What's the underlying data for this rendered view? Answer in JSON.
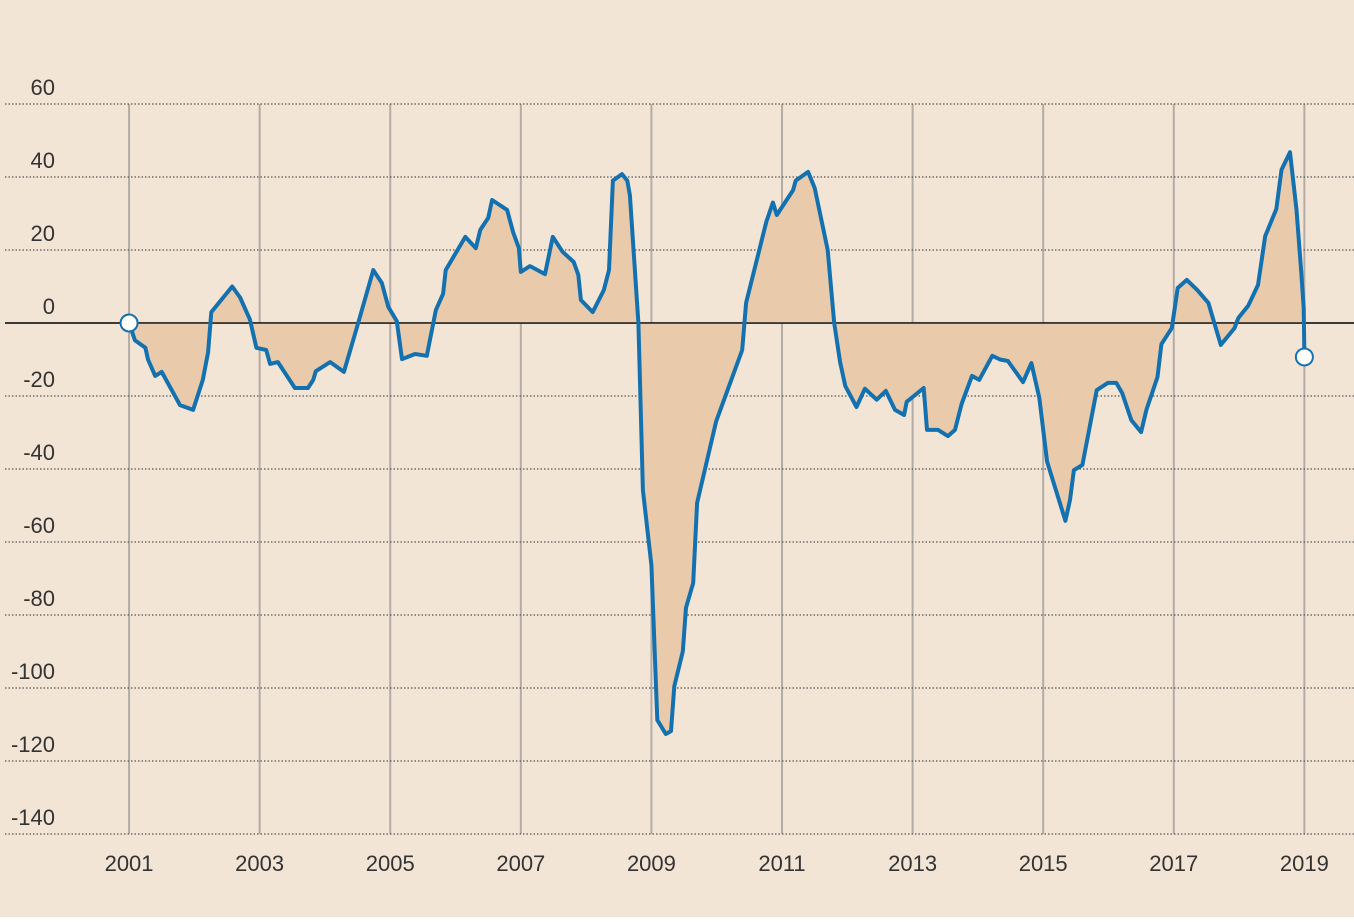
{
  "chart_data": {
    "type": "area-line",
    "x": [
      2001.0,
      2001.09,
      2001.25,
      2001.29,
      2001.4,
      2001.5,
      2001.78,
      2001.98,
      2002.13,
      2002.21,
      2002.26,
      2002.58,
      2002.7,
      2002.85,
      2002.95,
      2003.1,
      2003.16,
      2003.28,
      2003.54,
      2003.74,
      2003.82,
      2003.86,
      2004.08,
      2004.29,
      2004.51,
      2004.74,
      2004.87,
      2004.97,
      2005.1,
      2005.18,
      2005.38,
      2005.56,
      2005.7,
      2005.81,
      2005.85,
      2006.15,
      2006.31,
      2006.38,
      2006.5,
      2006.56,
      2006.79,
      2006.88,
      2006.97,
      2007.0,
      2007.14,
      2007.37,
      2007.49,
      2007.64,
      2007.81,
      2007.88,
      2007.92,
      2008.1,
      2008.27,
      2008.35,
      2008.41,
      2008.55,
      2008.63,
      2008.67,
      2008.8,
      2008.87,
      2009.0,
      2009.09,
      2009.22,
      2009.3,
      2009.35,
      2009.48,
      2009.53,
      2009.64,
      2009.7,
      2009.99,
      2010.39,
      2010.45,
      2010.76,
      2010.86,
      2010.92,
      2011.17,
      2011.21,
      2011.4,
      2011.5,
      2011.7,
      2011.8,
      2011.89,
      2011.97,
      2012.14,
      2012.27,
      2012.45,
      2012.59,
      2012.73,
      2012.87,
      2012.91,
      2013.17,
      2013.22,
      2013.39,
      2013.54,
      2013.65,
      2013.75,
      2013.91,
      2014.02,
      2014.22,
      2014.34,
      2014.46,
      2014.69,
      2014.82,
      2014.94,
      2015.06,
      2015.34,
      2015.41,
      2015.47,
      2015.6,
      2015.82,
      2015.99,
      2016.12,
      2016.21,
      2016.35,
      2016.5,
      2016.58,
      2016.75,
      2016.81,
      2016.97,
      2017.06,
      2017.2,
      2017.36,
      2017.53,
      2017.72,
      2017.93,
      2017.99,
      2018.14,
      2018.29,
      2018.4,
      2018.57,
      2018.65,
      2018.78,
      2018.88,
      2018.95,
      2018.99,
      2019.0
    ],
    "series": [
      {
        "color": "#1471b0",
        "fill": "#e9caab",
        "values": [
          0,
          -4.7,
          -6.8,
          -10,
          -14.5,
          -13.4,
          -22.5,
          -23.8,
          -15.6,
          -8,
          3,
          10,
          7,
          1,
          -6.8,
          -7.4,
          -11.2,
          -10.7,
          -17.8,
          -17.8,
          -15.6,
          -13.2,
          -10.7,
          -13.4,
          0,
          14.5,
          11,
          4.4,
          0.5,
          -9.9,
          -8.5,
          -9,
          3.6,
          8,
          14.5,
          23.6,
          20.5,
          25.5,
          28.8,
          33.7,
          31,
          25,
          20.5,
          14,
          15.6,
          13.4,
          23.6,
          19.5,
          16.7,
          13.2,
          6.3,
          3,
          9,
          14.5,
          39,
          40.8,
          39,
          35,
          0,
          -45.8,
          -66.3,
          -108.8,
          -112.6,
          -111.8,
          -99.5,
          -90,
          -78,
          -71.2,
          -49.3,
          -27,
          -7.4,
          5.5,
          27.7,
          33,
          29.6,
          36.4,
          39,
          41.4,
          37,
          20,
          0,
          -10.7,
          -17.3,
          -23,
          -18,
          -21,
          -18.6,
          -23.8,
          -25.2,
          -21.6,
          -17.8,
          -29.3,
          -29.3,
          -31,
          -29.3,
          -22.2,
          -14.5,
          -15.6,
          -9,
          -10,
          -10.4,
          -16.2,
          -11,
          -20.5,
          -38,
          -54.2,
          -48.5,
          -40.3,
          -38.9,
          -18.4,
          -16.4,
          -16.4,
          -19.2,
          -26.6,
          -29.9,
          -23.8,
          -14.8,
          -5.8,
          -1.4,
          9.6,
          11.8,
          9,
          5.5,
          -6,
          -1.4,
          1.4,
          4.7,
          10.4,
          23.8,
          31.2,
          42,
          46.8,
          31,
          14.5,
          4.1,
          -9.3
        ]
      }
    ],
    "xlim": [
      1999.1,
      2019.76
    ],
    "xticks": [
      2001,
      2003,
      2005,
      2007,
      2009,
      2011,
      2013,
      2015,
      2017,
      2019
    ],
    "ylim": [
      -140,
      60
    ],
    "yticks": [
      60,
      40,
      20,
      0,
      -20,
      -40,
      -60,
      -80,
      -100,
      -120,
      -140
    ],
    "grid": true,
    "background": "#f3e5d6"
  }
}
